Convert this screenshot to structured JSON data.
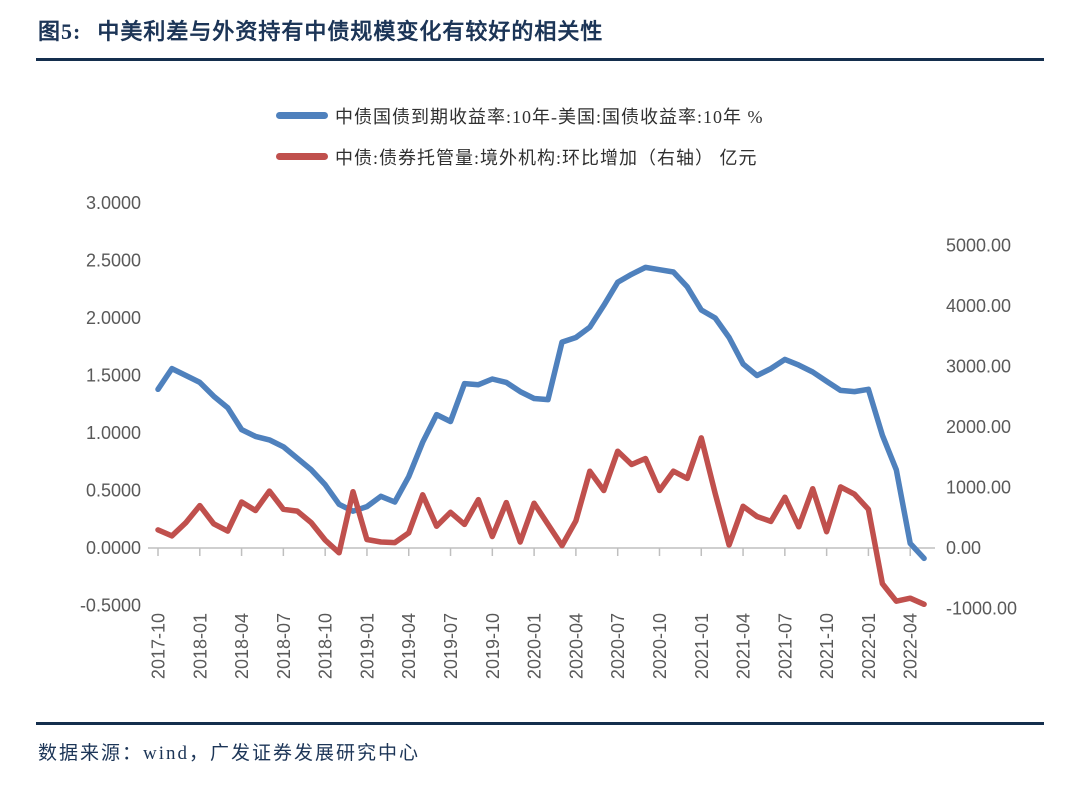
{
  "page": {
    "title_prefix": "图5:",
    "title": "中美利差与外资持有中债规模变化有较好的相关性",
    "source_note": "数据来源：wind，广发证券发展研究中心"
  },
  "colors": {
    "navy": "#1c3557",
    "blue_line": "#4F81BD",
    "red_line": "#C0504D",
    "axis_text": "#595959",
    "axis_line": "#BFBFBF"
  },
  "legend": [
    {
      "label": "中债国债到期收益率:10年-美国:国债收益率:10年 %",
      "color": "#4F81BD"
    },
    {
      "label": "中债:债券托管量:境外机构:环比增加（右轴） 亿元",
      "color": "#C0504D"
    }
  ],
  "chart_data": {
    "type": "line",
    "title": "图5: 中美利差与外资持有中债规模变化有较好的相关性",
    "xlabel": "",
    "ylabel_left": "%",
    "ylabel_right": "亿元",
    "grid": false,
    "legend_position": "top",
    "left_axis": {
      "min": -0.5,
      "max": 3.0,
      "ticks": [
        "3.0000",
        "2.5000",
        "2.0000",
        "1.5000",
        "1.0000",
        "0.5000",
        "0.0000",
        "-0.5000"
      ],
      "tick_values": [
        3.0,
        2.5,
        2.0,
        1.5,
        1.0,
        0.5,
        0.0,
        -0.5
      ]
    },
    "right_axis": {
      "min": -1000,
      "max": 5000,
      "ticks": [
        "5000.00",
        "4000.00",
        "3000.00",
        "2000.00",
        "1000.00",
        "0.00",
        "-1000.00"
      ],
      "tick_values": [
        5000,
        4000,
        3000,
        2000,
        1000,
        0,
        -1000
      ]
    },
    "x_tick_labels": [
      "2017-10",
      "2018-01",
      "2018-04",
      "2018-07",
      "2018-10",
      "2019-01",
      "2019-04",
      "2019-07",
      "2019-10",
      "2020-01",
      "2020-04",
      "2020-07",
      "2020-10",
      "2021-01",
      "2021-04",
      "2021-07",
      "2021-10",
      "2022-01",
      "2022-04"
    ],
    "x": [
      "2017-10",
      "2017-11",
      "2017-12",
      "2018-01",
      "2018-02",
      "2018-03",
      "2018-04",
      "2018-05",
      "2018-06",
      "2018-07",
      "2018-08",
      "2018-09",
      "2018-10",
      "2018-11",
      "2018-12",
      "2019-01",
      "2019-02",
      "2019-03",
      "2019-04",
      "2019-05",
      "2019-06",
      "2019-07",
      "2019-08",
      "2019-09",
      "2019-10",
      "2019-11",
      "2019-12",
      "2020-01",
      "2020-02",
      "2020-03",
      "2020-04",
      "2020-05",
      "2020-06",
      "2020-07",
      "2020-08",
      "2020-09",
      "2020-10",
      "2020-11",
      "2020-12",
      "2021-01",
      "2021-02",
      "2021-03",
      "2021-04",
      "2021-05",
      "2021-06",
      "2021-07",
      "2021-08",
      "2021-09",
      "2021-10",
      "2021-11",
      "2021-12",
      "2022-01",
      "2022-02",
      "2022-03",
      "2022-04",
      "2022-05"
    ],
    "series": [
      {
        "name": "中债国债到期收益率:10年-美国:国债收益率:10年 %",
        "axis": "left",
        "color": "#4F81BD",
        "values": [
          1.38,
          1.56,
          1.5,
          1.44,
          1.32,
          1.22,
          1.03,
          0.97,
          0.94,
          0.88,
          0.78,
          0.68,
          0.55,
          0.38,
          0.32,
          0.36,
          0.45,
          0.4,
          0.62,
          0.92,
          1.16,
          1.1,
          1.43,
          1.42,
          1.47,
          1.44,
          1.36,
          1.3,
          1.29,
          1.79,
          1.83,
          1.92,
          2.11,
          2.31,
          2.38,
          2.44,
          2.42,
          2.4,
          2.27,
          2.07,
          2.0,
          1.83,
          1.6,
          1.5,
          1.56,
          1.64,
          1.59,
          1.53,
          1.45,
          1.37,
          1.36,
          1.38,
          0.98,
          0.68,
          0.04,
          -0.09
        ]
      },
      {
        "name": "中债:债券托管量:境外机构:环比增加（右轴） 亿元",
        "axis": "right",
        "color": "#C0504D",
        "values": [
          300,
          200,
          420,
          700,
          400,
          280,
          760,
          620,
          940,
          640,
          610,
          420,
          130,
          -80,
          930,
          140,
          100,
          90,
          250,
          880,
          360,
          590,
          390,
          800,
          190,
          750,
          100,
          740,
          390,
          40,
          450,
          1270,
          950,
          1600,
          1380,
          1480,
          950,
          1270,
          1150,
          1820,
          900,
          50,
          690,
          520,
          440,
          840,
          350,
          980,
          270,
          1010,
          890,
          640,
          -590,
          -880,
          -830,
          -930
        ]
      }
    ]
  }
}
